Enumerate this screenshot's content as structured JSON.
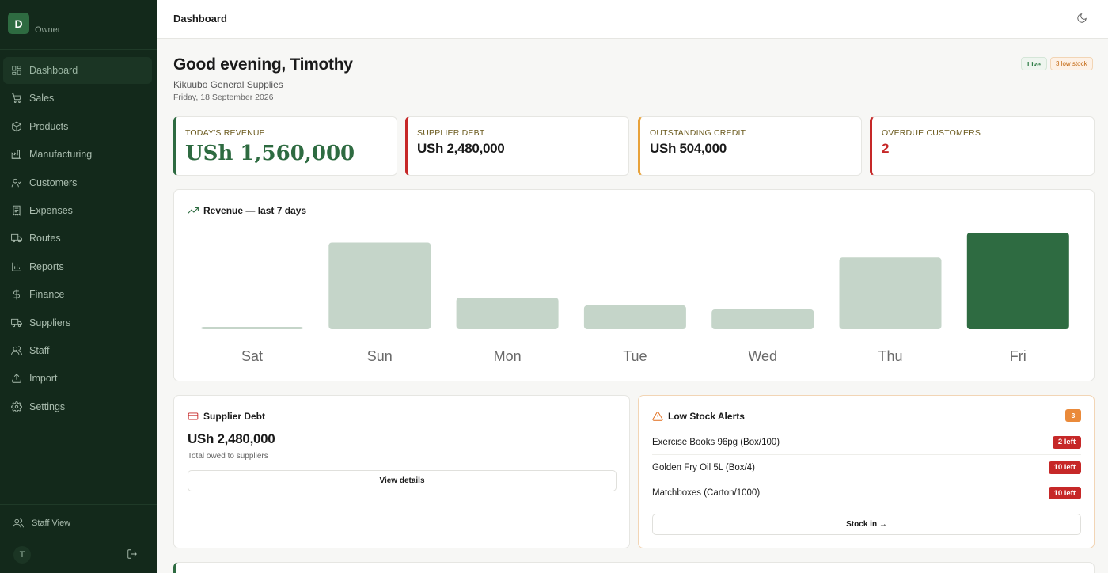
{
  "sidebar": {
    "logo_letter": "D",
    "role": "Owner",
    "items": [
      {
        "label": "Dashboard",
        "icon": "grid-icon",
        "active": true
      },
      {
        "label": "Sales",
        "icon": "cart-icon"
      },
      {
        "label": "Products",
        "icon": "box-icon"
      },
      {
        "label": "Manufacturing",
        "icon": "factory-icon"
      },
      {
        "label": "Customers",
        "icon": "user-check-icon"
      },
      {
        "label": "Expenses",
        "icon": "receipt-icon"
      },
      {
        "label": "Routes",
        "icon": "truck-icon"
      },
      {
        "label": "Reports",
        "icon": "bar-chart-icon"
      },
      {
        "label": "Finance",
        "icon": "dollar-icon"
      },
      {
        "label": "Suppliers",
        "icon": "truck-icon"
      },
      {
        "label": "Staff",
        "icon": "users-icon"
      },
      {
        "label": "Import",
        "icon": "upload-icon"
      },
      {
        "label": "Settings",
        "icon": "gear-icon"
      }
    ],
    "staff_view_label": "Staff View",
    "user_initial": "T"
  },
  "topbar": {
    "title": "Dashboard"
  },
  "header": {
    "greeting": "Good evening, Timothy",
    "business": "Kikuubo General Supplies",
    "date": "Friday, 18 September 2026",
    "badge_live": "Live",
    "badge_low_stock": "3 low stock"
  },
  "kpis": [
    {
      "label": "TODAY'S REVENUE",
      "value": "USh 1,560,000",
      "accent": "#2e6b41"
    },
    {
      "label": "SUPPLIER DEBT",
      "value": "USh 2,480,000",
      "accent": "#c62828"
    },
    {
      "label": "OUTSTANDING CREDIT",
      "value": "USh 504,000",
      "accent": "#e8a23a"
    },
    {
      "label": "OVERDUE CUSTOMERS",
      "value": "2",
      "accent": "#c62828"
    }
  ],
  "revenue_chart": {
    "title": "Revenue — last 7 days"
  },
  "chart_data": {
    "type": "bar",
    "title": "Revenue — last 7 days",
    "categories": [
      "Sat",
      "Sun",
      "Mon",
      "Tue",
      "Wed",
      "Thu",
      "Fri"
    ],
    "values": [
      30000,
      1400000,
      510000,
      385000,
      320000,
      1160000,
      1560000
    ],
    "highlight_index": 6,
    "colors": {
      "bar": "#c5d5c9",
      "highlight": "#2e6b41"
    },
    "grid": false,
    "legend": "none"
  },
  "supplier_debt": {
    "title": "Supplier Debt",
    "amount": "USh 2,480,000",
    "caption": "Total owed to suppliers",
    "button_label": "View details"
  },
  "low_stock": {
    "title": "Low Stock Alerts",
    "count": "3",
    "items": [
      {
        "name": "Exercise Books 96pg (Box/100)",
        "left": "2 left"
      },
      {
        "name": "Golden Fry Oil 5L (Box/4)",
        "left": "10 left"
      },
      {
        "name": "Matchboxes (Carton/1000)",
        "left": "10 left"
      }
    ],
    "button_label": "Stock in →"
  }
}
